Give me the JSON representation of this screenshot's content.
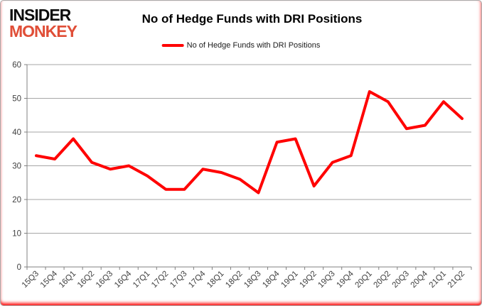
{
  "brand": {
    "line1": "INSIDER",
    "line2": "MONKEY",
    "color_line1": "#0d0d0d",
    "color_line2": "#e04e37"
  },
  "header": {
    "title": "No of Hedge Funds with DRI Positions"
  },
  "legend": {
    "label": "No of Hedge Funds with DRI Positions",
    "line_color": "#ff0000"
  },
  "chart_data": {
    "type": "line",
    "title": "No of Hedge Funds with DRI Positions",
    "series": [
      {
        "name": "No of Hedge Funds with DRI Positions",
        "values": [
          33,
          32,
          38,
          31,
          29,
          30,
          27,
          23,
          23,
          29,
          28,
          26,
          22,
          37,
          38,
          24,
          31,
          33,
          52,
          49,
          41,
          42,
          49,
          44
        ]
      }
    ],
    "categories": [
      "15Q3",
      "15Q4",
      "16Q1",
      "16Q2",
      "16Q3",
      "16Q4",
      "17Q1",
      "17Q2",
      "17Q3",
      "17Q4",
      "18Q1",
      "18Q2",
      "18Q3",
      "18Q4",
      "19Q1",
      "19Q2",
      "19Q3",
      "19Q4",
      "20Q1",
      "20Q2",
      "20Q3",
      "20Q4",
      "21Q1",
      "21Q2"
    ],
    "xlabel": "",
    "ylabel": "",
    "ylim": [
      0,
      60
    ],
    "ytick_step": 10,
    "grid": true,
    "legend_position": "top",
    "line_color": "#ff0000",
    "gridline_color": "#a6a6a6",
    "axis_color": "#808080",
    "tick_label_color": "#3f3f3f"
  }
}
